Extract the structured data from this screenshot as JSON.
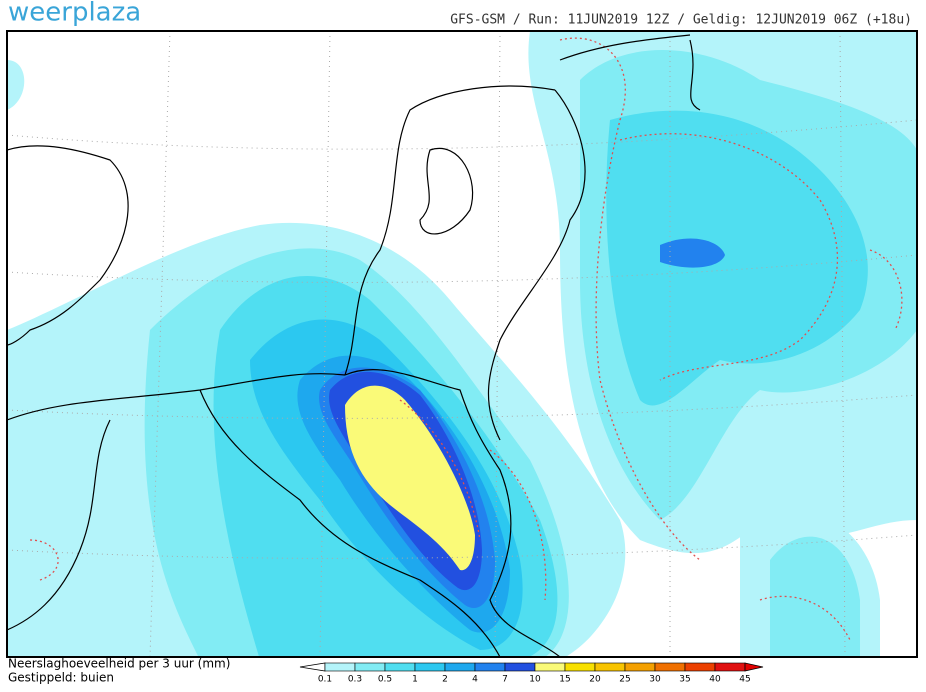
{
  "header": {
    "logo": "weerplaza",
    "info": "GFS-GSM / Run: 11JUN2019 12Z / Geldig: 12JUN2019 06Z (+18u)"
  },
  "legend": {
    "title": "Neerslaghoeveelheid per 3 uur (mm)",
    "subtitle": "Gestippeld: buien",
    "labels": [
      "0.1",
      "0.3",
      "0.5",
      "1",
      "2",
      "4",
      "7",
      "10",
      "15",
      "20",
      "25",
      "30",
      "35",
      "40",
      "45"
    ],
    "colors": [
      "#ffffff",
      "#b4f4fa",
      "#82ecf4",
      "#50def0",
      "#2cc8f0",
      "#1ea8ee",
      "#2282ee",
      "#2250e0",
      "#fafa78",
      "#f8e000",
      "#f8c400",
      "#f4a000",
      "#f07000",
      "#ec4000",
      "#e01010",
      "#e00000"
    ]
  }
}
